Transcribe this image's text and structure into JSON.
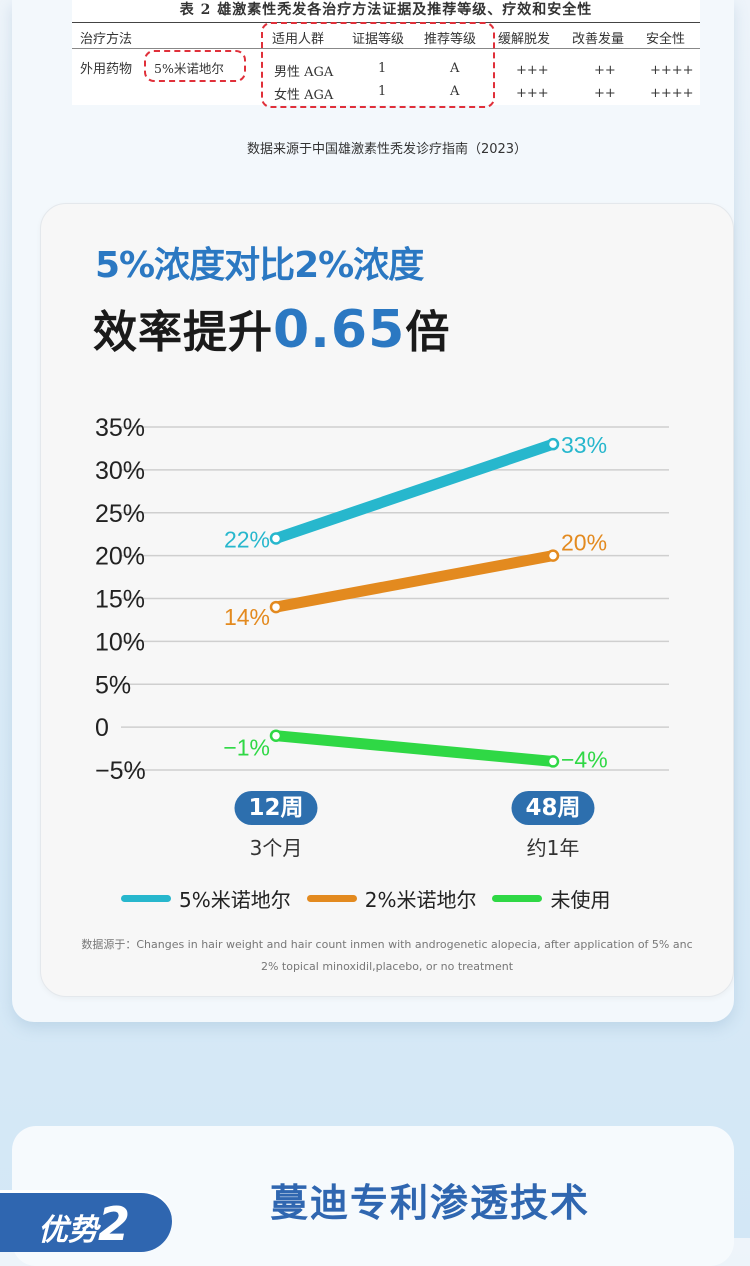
{
  "table": {
    "caption": "表 2  雄激素性秃发各治疗方法证据及推荐等级、疗效和安全性",
    "headers": [
      "治疗方法",
      "适用人群",
      "证据等级",
      "推荐等级",
      "缓解脱发",
      "改善发量",
      "安全性"
    ],
    "row_label": "外用药物",
    "drug": "5%米诺地尔",
    "rows": [
      {
        "group": "男性 AGA",
        "evidence": "1",
        "grade": "A",
        "relief": "+++",
        "improve": "++",
        "safety": "++++"
      },
      {
        "group": "女性 AGA",
        "evidence": "1",
        "grade": "A",
        "relief": "+++",
        "improve": "++",
        "safety": "++++"
      }
    ]
  },
  "source_text": "数据来源于中国雄激素性秃发诊疗指南（2023）",
  "headline": {
    "line1": "5%浓度对比2%浓度",
    "line2_prefix": "效率提升",
    "line2_highlight": "0.65",
    "line2_suffix": "倍"
  },
  "chart_data": {
    "type": "line",
    "x": [
      "12周",
      "48周"
    ],
    "x_sublabels": [
      "3个月",
      "约1年"
    ],
    "y_ticks": [
      "35%",
      "30%",
      "25%",
      "20%",
      "15%",
      "10%",
      "5%",
      "0",
      "−5%"
    ],
    "ylim": [
      -5,
      35
    ],
    "grid": true,
    "legend_position": "bottom",
    "series": [
      {
        "name": "5%米诺地尔",
        "color": "#27b7cd",
        "values": [
          22,
          33
        ],
        "labels": [
          "22%",
          "33%"
        ]
      },
      {
        "name": "2%米诺地尔",
        "color": "#e38a1f",
        "values": [
          14,
          20
        ],
        "labels": [
          "14%",
          "20%"
        ]
      },
      {
        "name": "未使用",
        "color": "#2fd845",
        "values": [
          -1,
          -4
        ],
        "labels": [
          "−1%",
          "−4%"
        ]
      }
    ]
  },
  "footnote_line1": "数据源于：Changes in hair weight and hair count inmen with androgenetic alopecia, after application of 5% anc",
  "footnote_line2": "2% topical minoxidil,placebo, or no treatment",
  "advantage": {
    "label": "优势",
    "number": "2"
  },
  "tech_title": "蔓迪专利渗透技术"
}
